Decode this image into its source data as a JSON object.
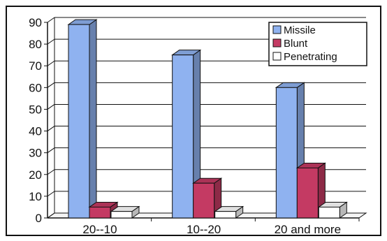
{
  "chart_data": {
    "type": "bar",
    "categories": [
      "20--10",
      "10--20",
      "20 and more"
    ],
    "series": [
      {
        "name": "Missile",
        "values": [
          89,
          75,
          60
        ],
        "color": "#8fb2f0"
      },
      {
        "name": "Blunt",
        "values": [
          5,
          16,
          23
        ],
        "color": "#c43a63"
      },
      {
        "name": "Penetrating",
        "values": [
          3,
          3,
          5
        ],
        "color": "#ffffff"
      }
    ],
    "yticks": [
      "0",
      "10",
      "20",
      "30",
      "40",
      "50",
      "60",
      "70",
      "80",
      "90"
    ],
    "ylim": [
      0,
      90
    ],
    "grid": true,
    "legend_position": "top-right",
    "style": "3d"
  }
}
